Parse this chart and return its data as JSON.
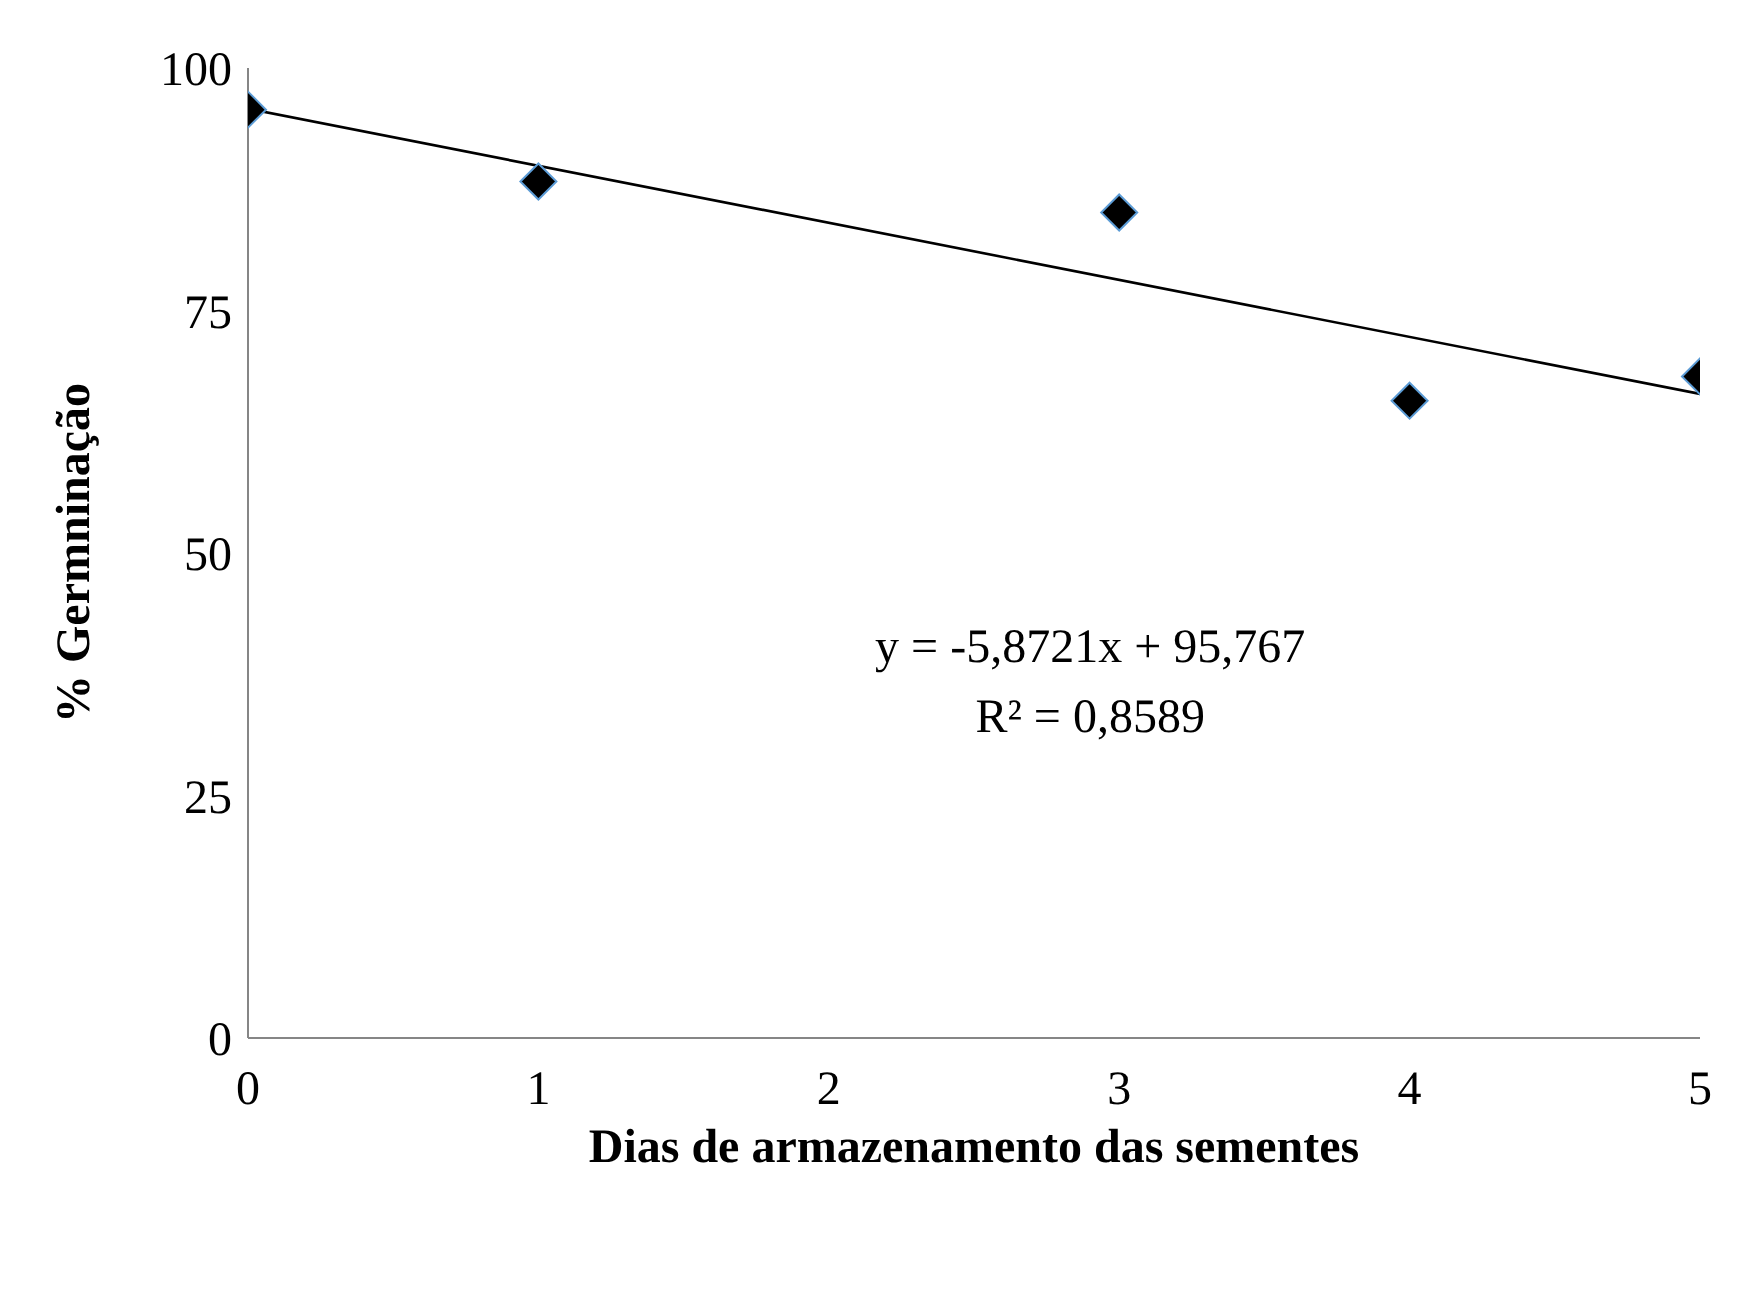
{
  "chart_data": {
    "type": "scatter",
    "xlabel": "Dias de armazenamento das sementes",
    "ylabel": "% Germninação",
    "x": [
      0,
      1,
      3,
      4,
      5
    ],
    "series": [
      {
        "color": "#000000",
        "values": [
          95.7,
          88.3,
          85.1,
          65.7,
          68.2
        ]
      },
      {
        "type": "line",
        "color": "#000000",
        "x": [
          0,
          5
        ],
        "values": [
          95.8,
          66.4
        ],
        "marker": "none"
      }
    ],
    "marker": "diamond",
    "xlim": [
      0,
      5
    ],
    "xticks": [
      0,
      1,
      2,
      3,
      4,
      5
    ],
    "ylim": [
      0,
      100
    ],
    "yticks": [
      0,
      25,
      50,
      75,
      100
    ],
    "grid": false,
    "annotations": [
      "y = -5,8721x + 95,767",
      "R² = 0,8589"
    ]
  }
}
